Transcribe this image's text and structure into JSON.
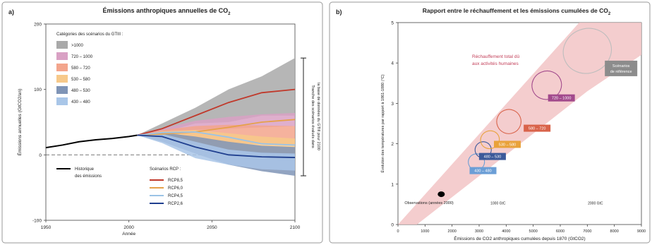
{
  "chart_data": [
    {
      "type": "area",
      "panel_label": "a)",
      "title": "Émissions anthropiques annuelles de CO",
      "title_sub": "2",
      "xlabel": "Année",
      "ylabel": "Émissions annuelles (GtCO2/an)",
      "xlim": [
        1950,
        2100
      ],
      "ylim": [
        -100,
        200
      ],
      "x_ticks": [
        1950,
        2000,
        2050,
        2100
      ],
      "y_ticks": [
        -100,
        0,
        100,
        200
      ],
      "legend_title": "Catégories des scénarios du GTIII :",
      "categories_legend": [
        {
          "label": ">1000",
          "color": "#a9a9a9"
        },
        {
          "label": "720 – 1000",
          "color": "#d9a1c4"
        },
        {
          "label": "580 – 720",
          "color": "#f3a58c"
        },
        {
          "label": "530 – 580",
          "color": "#f7c98a"
        },
        {
          "label": "480 – 530",
          "color": "#7f94b6"
        },
        {
          "label": "430 – 480",
          "color": "#a9c6e8"
        }
      ],
      "historical": {
        "label_line1": "Historique",
        "label_line2": "des émissions",
        "color": "#000000",
        "x": [
          1950,
          1960,
          1970,
          1980,
          1990,
          2000,
          2005
        ],
        "y": [
          11,
          15,
          20,
          23,
          25,
          28,
          30
        ]
      },
      "rcp_legend_title": "Scénarios RCP :",
      "series": [
        {
          "name": "RCP8,5",
          "color": "#c0392b",
          "x": [
            2005,
            2020,
            2040,
            2060,
            2080,
            2100
          ],
          "y": [
            30,
            40,
            60,
            80,
            95,
            100
          ]
        },
        {
          "name": "RCP6,0",
          "color": "#e6a14a",
          "x": [
            2005,
            2020,
            2040,
            2060,
            2080,
            2100
          ],
          "y": [
            30,
            32,
            35,
            42,
            50,
            54
          ]
        },
        {
          "name": "RCP4,5",
          "color": "#9bc3e6",
          "x": [
            2005,
            2020,
            2040,
            2060,
            2080,
            2100
          ],
          "y": [
            30,
            34,
            35,
            27,
            17,
            15
          ]
        },
        {
          "name": "RCP2,6",
          "color": "#1f3f8f",
          "x": [
            2005,
            2020,
            2040,
            2060,
            2080,
            2100
          ],
          "y": [
            30,
            28,
            12,
            0,
            -3,
            -4
          ]
        }
      ],
      "bands": [
        {
          "category": ">1000",
          "x": [
            2005,
            2020,
            2040,
            2060,
            2080,
            2100
          ],
          "low": [
            30,
            34,
            48,
            50,
            60,
            60
          ],
          "high": [
            30,
            48,
            72,
            100,
            120,
            148
          ]
        },
        {
          "category": "720 – 1000",
          "x": [
            2005,
            2020,
            2040,
            2060,
            2080,
            2100
          ],
          "low": [
            30,
            32,
            38,
            40,
            42,
            44
          ],
          "high": [
            30,
            40,
            52,
            58,
            62,
            64
          ]
        },
        {
          "category": "580 – 720",
          "x": [
            2005,
            2020,
            2040,
            2060,
            2080,
            2100
          ],
          "low": [
            30,
            28,
            22,
            18,
            16,
            14
          ],
          "high": [
            30,
            38,
            44,
            46,
            45,
            44
          ]
        },
        {
          "category": "530 – 580",
          "x": [
            2005,
            2020,
            2040,
            2060,
            2080,
            2100
          ],
          "low": [
            30,
            24,
            14,
            8,
            4,
            2
          ],
          "high": [
            30,
            36,
            38,
            33,
            28,
            25
          ]
        },
        {
          "category": "480 – 530",
          "x": [
            2005,
            2020,
            2040,
            2060,
            2080,
            2100
          ],
          "low": [
            30,
            20,
            2,
            -15,
            -25,
            -32
          ],
          "high": [
            30,
            34,
            28,
            20,
            14,
            12
          ]
        },
        {
          "category": "430 – 480",
          "x": [
            2005,
            2020,
            2040,
            2060,
            2080,
            2100
          ],
          "low": [
            30,
            18,
            -5,
            -15,
            -22,
            -24
          ],
          "high": [
            30,
            32,
            20,
            8,
            3,
            2
          ]
        }
      ],
      "side_bracket_text_line1": "Tranche des scénarios évalués dans",
      "side_bracket_text_line2": "la base de données du GTIII pour 2100"
    },
    {
      "type": "scatter",
      "panel_label": "b)",
      "title": "Rapport entre le réchauffement et les émissions cumulées de CO",
      "title_sub": "2",
      "xlabel": "Émissions de CO2 anthropiques cumulées depuis 1870 (GtCO2)",
      "ylabel": "Évolution des températures par rapport à 1861-1880 (°C)",
      "xlim": [
        0,
        9000
      ],
      "ylim": [
        0,
        5
      ],
      "x_ticks": [
        0,
        1000,
        2000,
        3000,
        4000,
        5000,
        6000,
        7000,
        8000,
        9000
      ],
      "y_ticks": [
        0,
        1,
        2,
        3,
        4,
        5
      ],
      "band_label_line1": "Réchauffement total dû",
      "band_label_line2": "aux activités humaines",
      "band_color": "#f2c4c6",
      "observed": {
        "label": "Observations (années 2000)",
        "x": 1600,
        "y": 0.75
      },
      "secondary_axis_labels": [
        "1000 GtC",
        "2000 GtC"
      ],
      "ellipses": [
        {
          "category": "430 – 480",
          "cx": 2900,
          "cy": 1.55,
          "rx": 300,
          "ry": 0.2,
          "color": "#6b9ed6"
        },
        {
          "category": "480 – 530",
          "cx": 3150,
          "cy": 1.85,
          "rx": 300,
          "ry": 0.2,
          "color": "#3d5a9a"
        },
        {
          "category": "530 – 580",
          "cx": 3400,
          "cy": 2.1,
          "rx": 350,
          "ry": 0.22,
          "color": "#e9a23b"
        },
        {
          "category": "580 – 720",
          "cx": 4100,
          "cy": 2.55,
          "rx": 450,
          "ry": 0.3,
          "color": "#d9634a"
        },
        {
          "category": "720 – 1000",
          "cx": 5500,
          "cy": 3.45,
          "rx": 550,
          "ry": 0.35,
          "color": "#a24a8c"
        },
        {
          "category": "Scénarios de référence",
          "cx": 7000,
          "cy": 4.3,
          "rx": 900,
          "ry": 0.55,
          "color": "#bdbdbd"
        }
      ],
      "category_labels": [
        {
          "label": "430 – 480",
          "x": 2700,
          "y": 1.3,
          "color": "#6b9ed6"
        },
        {
          "label": "480 – 530",
          "x": 3050,
          "y": 1.65,
          "color": "#3d5a9a"
        },
        {
          "label": "530 – 580",
          "x": 3600,
          "y": 1.95,
          "color": "#e9a23b"
        },
        {
          "label": "580 – 720",
          "x": 4700,
          "y": 2.35,
          "color": "#d9634a"
        },
        {
          "label": "720 – 1000",
          "x": 5600,
          "y": 3.1,
          "color": "#a24a8c"
        },
        {
          "label_line1": "Scénarios",
          "label_line2": "de référence",
          "x": 7700,
          "y": 3.9,
          "color": "#8c8c8c"
        }
      ]
    }
  ]
}
